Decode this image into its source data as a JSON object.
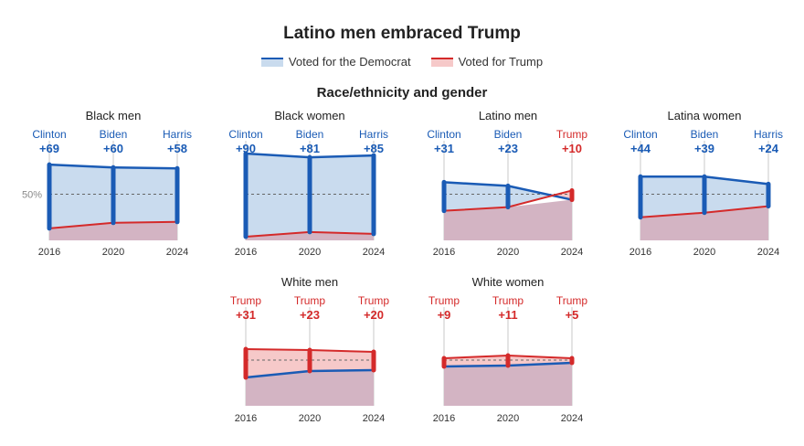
{
  "title": "Latino men embraced Trump",
  "legend": {
    "democrat": "Voted for the Democrat",
    "trump": "Voted for Trump"
  },
  "subtitle": "Race/ethnicity and gender",
  "colors": {
    "dem_line": "#1a5bb5",
    "dem_fill": "#c9dbee",
    "rep_line": "#d42a2a",
    "rep_fill": "#f6c9c9",
    "overlap_fill": "#d3b4c3"
  },
  "chart_data": {
    "type": "area",
    "x": [
      "2016",
      "2020",
      "2024"
    ],
    "y_reference": "50%",
    "ylim": [
      0,
      100
    ],
    "panels": [
      {
        "name": "Black men",
        "democrat": [
          82,
          79,
          78
        ],
        "trump": [
          13,
          19,
          20
        ],
        "labels": [
          {
            "candidate": "Clinton",
            "margin": "+69",
            "party": "dem"
          },
          {
            "candidate": "Biden",
            "margin": "+60",
            "party": "dem"
          },
          {
            "candidate": "Harris",
            "margin": "+58",
            "party": "dem"
          }
        ],
        "show_reference_label": true
      },
      {
        "name": "Black women",
        "democrat": [
          94,
          90,
          92
        ],
        "trump": [
          4,
          9,
          7
        ],
        "labels": [
          {
            "candidate": "Clinton",
            "margin": "+90",
            "party": "dem"
          },
          {
            "candidate": "Biden",
            "margin": "+81",
            "party": "dem"
          },
          {
            "candidate": "Harris",
            "margin": "+85",
            "party": "dem"
          }
        ]
      },
      {
        "name": "Latino men",
        "democrat": [
          63,
          59,
          44
        ],
        "trump": [
          32,
          36,
          54
        ],
        "labels": [
          {
            "candidate": "Clinton",
            "margin": "+31",
            "party": "dem"
          },
          {
            "candidate": "Biden",
            "margin": "+23",
            "party": "dem"
          },
          {
            "candidate": "Trump",
            "margin": "+10",
            "party": "rep"
          }
        ]
      },
      {
        "name": "Latina women",
        "democrat": [
          69,
          69,
          61
        ],
        "trump": [
          25,
          30,
          37
        ],
        "labels": [
          {
            "candidate": "Clinton",
            "margin": "+44",
            "party": "dem"
          },
          {
            "candidate": "Biden",
            "margin": "+39",
            "party": "dem"
          },
          {
            "candidate": "Harris",
            "margin": "+24",
            "party": "dem"
          }
        ]
      },
      {
        "name": "White men",
        "democrat": [
          31,
          38,
          39
        ],
        "trump": [
          62,
          61,
          59
        ],
        "labels": [
          {
            "candidate": "Trump",
            "margin": "+31",
            "party": "rep"
          },
          {
            "candidate": "Trump",
            "margin": "+23",
            "party": "rep"
          },
          {
            "candidate": "Trump",
            "margin": "+20",
            "party": "rep"
          }
        ]
      },
      {
        "name": "White women",
        "democrat": [
          43,
          44,
          47
        ],
        "trump": [
          52,
          55,
          52
        ],
        "labels": [
          {
            "candidate": "Trump",
            "margin": "+9",
            "party": "rep"
          },
          {
            "candidate": "Trump",
            "margin": "+11",
            "party": "rep"
          },
          {
            "candidate": "Trump",
            "margin": "+5",
            "party": "rep"
          }
        ]
      }
    ]
  }
}
